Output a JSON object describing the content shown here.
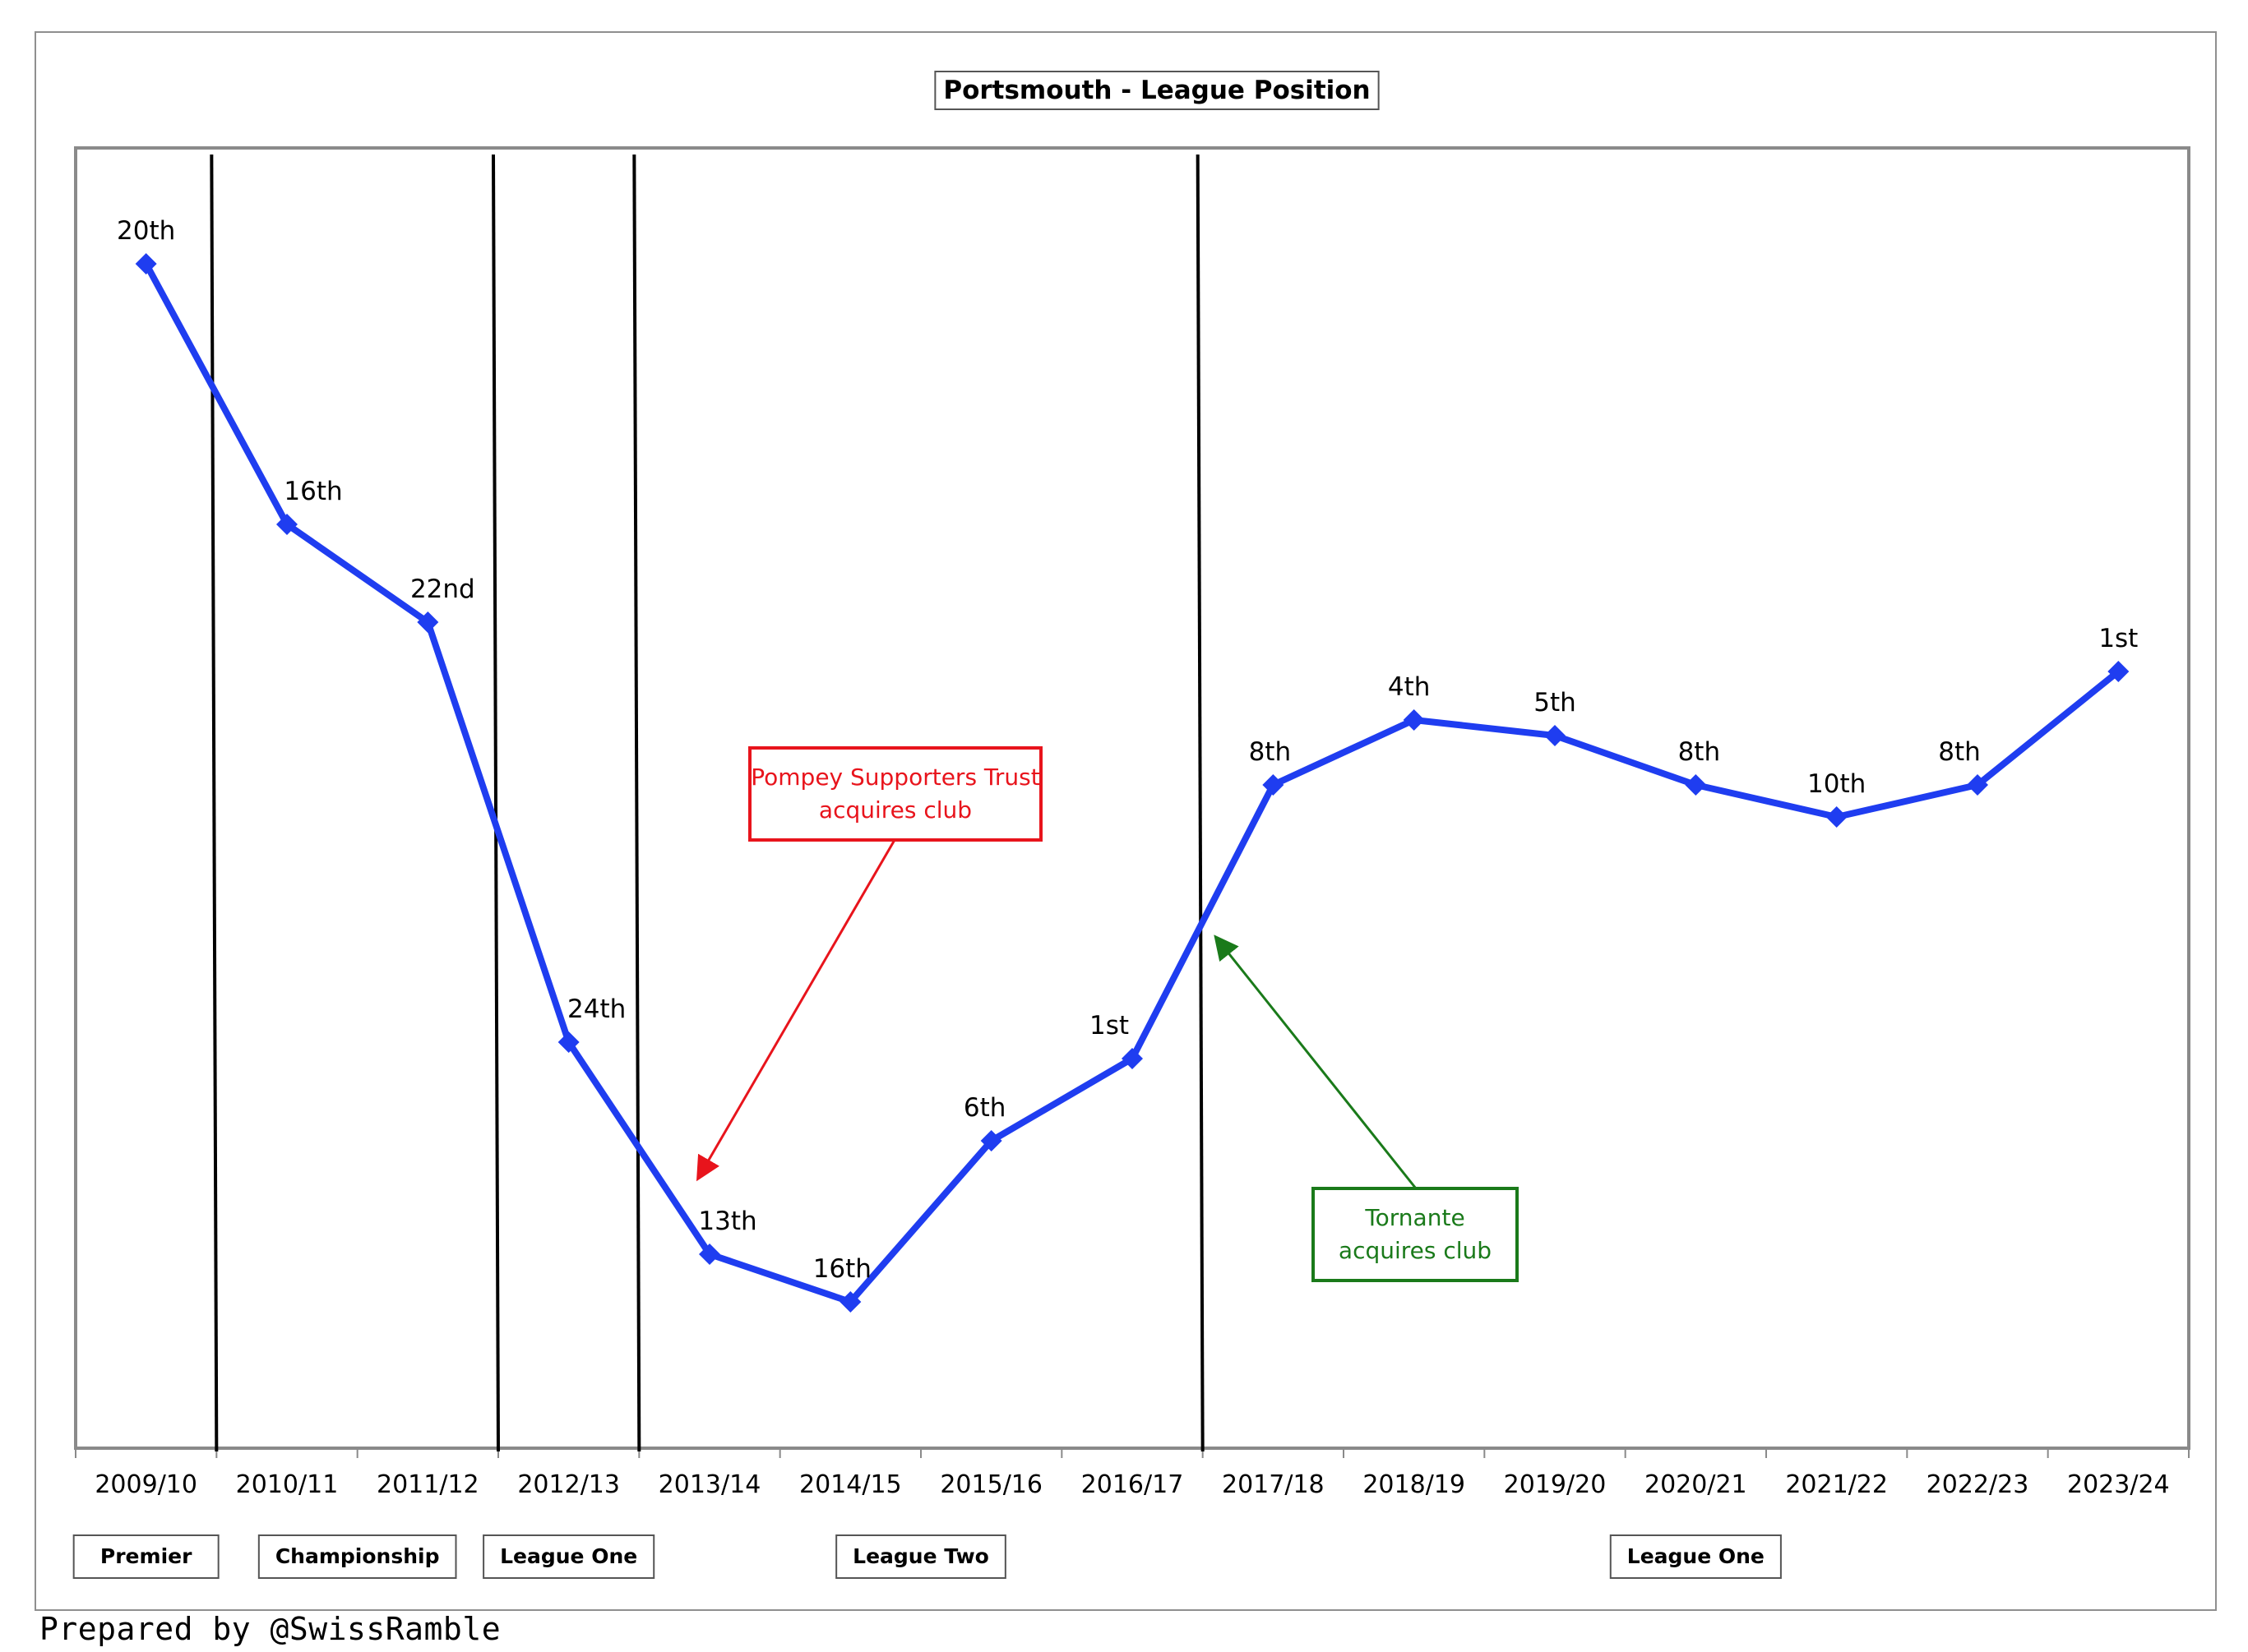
{
  "chart_data": {
    "type": "line",
    "title": "Portsmouth - League Position",
    "categories": [
      "2009/10",
      "2010/11",
      "2011/12",
      "2012/13",
      "2013/14",
      "2014/15",
      "2015/16",
      "2016/17",
      "2017/18",
      "2018/19",
      "2019/20",
      "2020/21",
      "2021/22",
      "2022/23",
      "2023/24"
    ],
    "series": [
      {
        "labels": [
          "20th",
          "16th",
          "22nd",
          "24th",
          "13th",
          "16th",
          "6th",
          "1st",
          "8th",
          "4th",
          "5th",
          "8th",
          "10th",
          "8th",
          "1st"
        ],
        "color": "#1f3df0"
      }
    ],
    "divisions": [
      {
        "label": "Premier",
        "seasons": [
          "2009/10"
        ]
      },
      {
        "label": "Championship",
        "seasons": [
          "2010/11",
          "2011/12"
        ]
      },
      {
        "label": "League One",
        "seasons": [
          "2012/13"
        ]
      },
      {
        "label": "League Two",
        "seasons": [
          "2013/14",
          "2014/15",
          "2015/16",
          "2016/17"
        ]
      },
      {
        "label": "League One",
        "seasons": [
          "2017/18",
          "2018/19",
          "2019/20",
          "2020/21",
          "2021/22",
          "2022/23",
          "2023/24"
        ]
      }
    ],
    "annotations": [
      {
        "lines": [
          "Pompey Supporters Trust",
          "acquires club"
        ],
        "color": "#e8141c",
        "points_to": "2013/14"
      },
      {
        "lines": [
          "Tornante",
          "acquires club"
        ],
        "color": "#1a7a1a",
        "points_to": "2016/17-2017/18 boundary"
      }
    ],
    "grid": false,
    "legend": "none"
  },
  "footer": "Prepared by @SwissRamble"
}
